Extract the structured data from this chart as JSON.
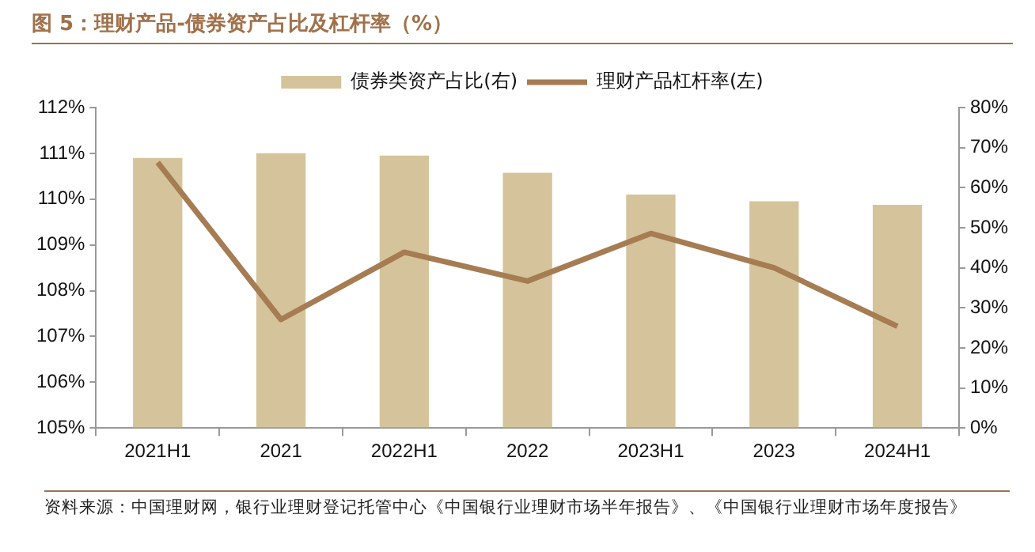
{
  "chart_data": {
    "type": "bar",
    "title": "图 5：理财产品-债券资产占比及杠杆率（%）",
    "categories": [
      "2021H1",
      "2021",
      "2022H1",
      "2022",
      "2023H1",
      "2023",
      "2024H1"
    ],
    "series": [
      {
        "name": "债券类资产占比(右)",
        "axis": "y2",
        "color": "#d5c49b",
        "values": [
          67.4,
          68.6,
          68.0,
          63.7,
          58.3,
          56.6,
          55.7
        ]
      },
      {
        "name": "理财产品杠杆率(左)",
        "type": "line",
        "color": "#a67c52",
        "values": [
          110.8,
          107.37,
          108.84,
          108.21,
          109.25,
          108.5,
          107.22
        ]
      }
    ],
    "ylim": [
      105,
      112
    ],
    "yticks": [
      {
        "value": 105,
        "label": "105%"
      },
      {
        "value": 106,
        "label": "106%"
      },
      {
        "value": 107,
        "label": "107%"
      },
      {
        "value": 108,
        "label": "108%"
      },
      {
        "value": 109,
        "label": "109%"
      },
      {
        "value": 110,
        "label": "110%"
      },
      {
        "value": 111,
        "label": "111%"
      },
      {
        "value": 112,
        "label": "112%"
      }
    ],
    "y2lim": [
      0,
      80
    ],
    "y2ticks": [
      {
        "value": 0,
        "label": "0%"
      },
      {
        "value": 10,
        "label": "10%"
      },
      {
        "value": 20,
        "label": "20%"
      },
      {
        "value": 30,
        "label": "30%"
      },
      {
        "value": 40,
        "label": "40%"
      },
      {
        "value": 50,
        "label": "50%"
      },
      {
        "value": 60,
        "label": "60%"
      },
      {
        "value": 70,
        "label": "70%"
      },
      {
        "value": 80,
        "label": "80%"
      }
    ],
    "grid": false,
    "legend": "top",
    "marker": "none",
    "annotations": [
      "资料来源：中国理财网，银行业理财登记托管中心《中国银行业理财市场半年报告》、《中国银行业理财市场年度报告》"
    ]
  }
}
